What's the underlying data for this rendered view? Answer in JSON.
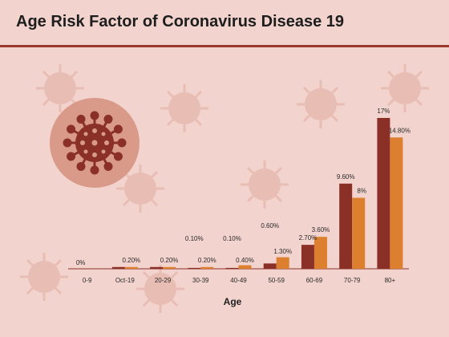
{
  "slide": {
    "title": "Age Risk Factor of Coronavirus Disease 19"
  },
  "decor": {
    "emblem_icon": "virus-icon",
    "background_icon": "virus-icon"
  },
  "colors": {
    "background": "#f2d3cd",
    "rule": "#9b3a2c",
    "series_1": "#8a3027",
    "series_2": "#dc7f2e",
    "emblem_circle": "#d99a8a",
    "emblem_virus": "#8a3027"
  },
  "chart_data": {
    "type": "bar",
    "title": "",
    "xlabel": "Age",
    "ylabel": "",
    "ylim": [
      0,
      17
    ],
    "grid": false,
    "legend": "none",
    "categories": [
      "0-9",
      "Oct-19",
      "20-29",
      "30-39",
      "40-49",
      "50-59",
      "60-69",
      "70-79",
      "80+"
    ],
    "series": [
      {
        "values": [
          0,
          0.2,
          0.2,
          0.1,
          0.1,
          0.6,
          2.7,
          9.6,
          17
        ],
        "labels": [
          "0%",
          "0.20%",
          "0.20%",
          "0.10%",
          "0.10%",
          "0.60%",
          "2.70%",
          "9.60%",
          "17%"
        ],
        "label_visible": [
          true,
          false,
          false,
          true,
          true,
          true,
          true,
          true,
          true
        ]
      },
      {
        "values": [
          0,
          0.2,
          0.2,
          0.2,
          0.4,
          1.3,
          3.6,
          8,
          14.8
        ],
        "labels": [
          "0%",
          "0.20%",
          "0.20%",
          "0.20%",
          "0.40%",
          "1.30%",
          "3.60%",
          "8%",
          "14.80%"
        ],
        "label_visible": [
          false,
          true,
          true,
          true,
          true,
          true,
          true,
          true,
          true
        ]
      }
    ]
  }
}
